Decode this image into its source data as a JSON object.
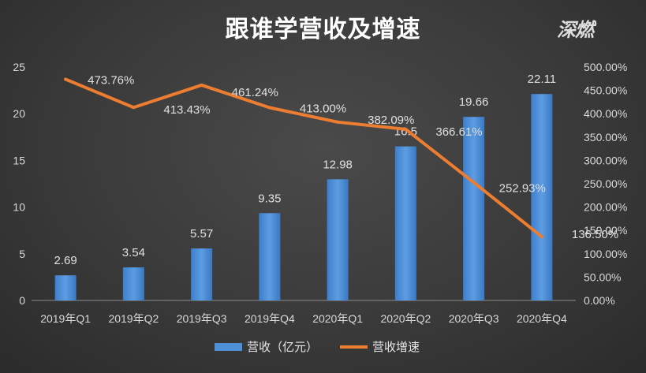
{
  "chart_data": {
    "type": "bar+line",
    "title": "跟谁学营收及增速",
    "categories": [
      "2019年Q1",
      "2019年Q2",
      "2019年Q3",
      "2019年Q4",
      "2020年Q1",
      "2020年Q2",
      "2020年Q3",
      "2020年Q4"
    ],
    "series": [
      {
        "name": "营收（亿元）",
        "type": "bar",
        "axis": "left",
        "color": "#4f8fd6",
        "values": [
          2.69,
          3.54,
          5.57,
          9.35,
          12.98,
          16.5,
          19.66,
          22.11
        ],
        "labels": [
          "2.69",
          "3.54",
          "5.57",
          "9.35",
          "12.98",
          "16.5",
          "19.66",
          "22.11"
        ]
      },
      {
        "name": "营收增速",
        "type": "line",
        "axis": "right",
        "color": "#ed7d31",
        "values": [
          473.76,
          413.43,
          461.24,
          413.0,
          382.09,
          366.61,
          252.93,
          136.5
        ],
        "labels": [
          "473.76%",
          "413.43%",
          "461.24%",
          "413.00%",
          "382.09%",
          "366.61%",
          "252.93%",
          "136.50%"
        ]
      }
    ],
    "y_left": {
      "min": 0,
      "max": 25,
      "step": 5,
      "ticks": [
        "0",
        "5",
        "10",
        "15",
        "20",
        "25"
      ]
    },
    "y_right": {
      "min": 0,
      "max": 500,
      "step": 50,
      "ticks": [
        "0.00%",
        "50.00%",
        "100.00%",
        "150.00%",
        "200.00%",
        "250.00%",
        "300.00%",
        "350.00%",
        "400.00%",
        "450.00%",
        "500.00%"
      ]
    },
    "grid": false,
    "legend_position": "bottom"
  },
  "watermark": "深燃"
}
